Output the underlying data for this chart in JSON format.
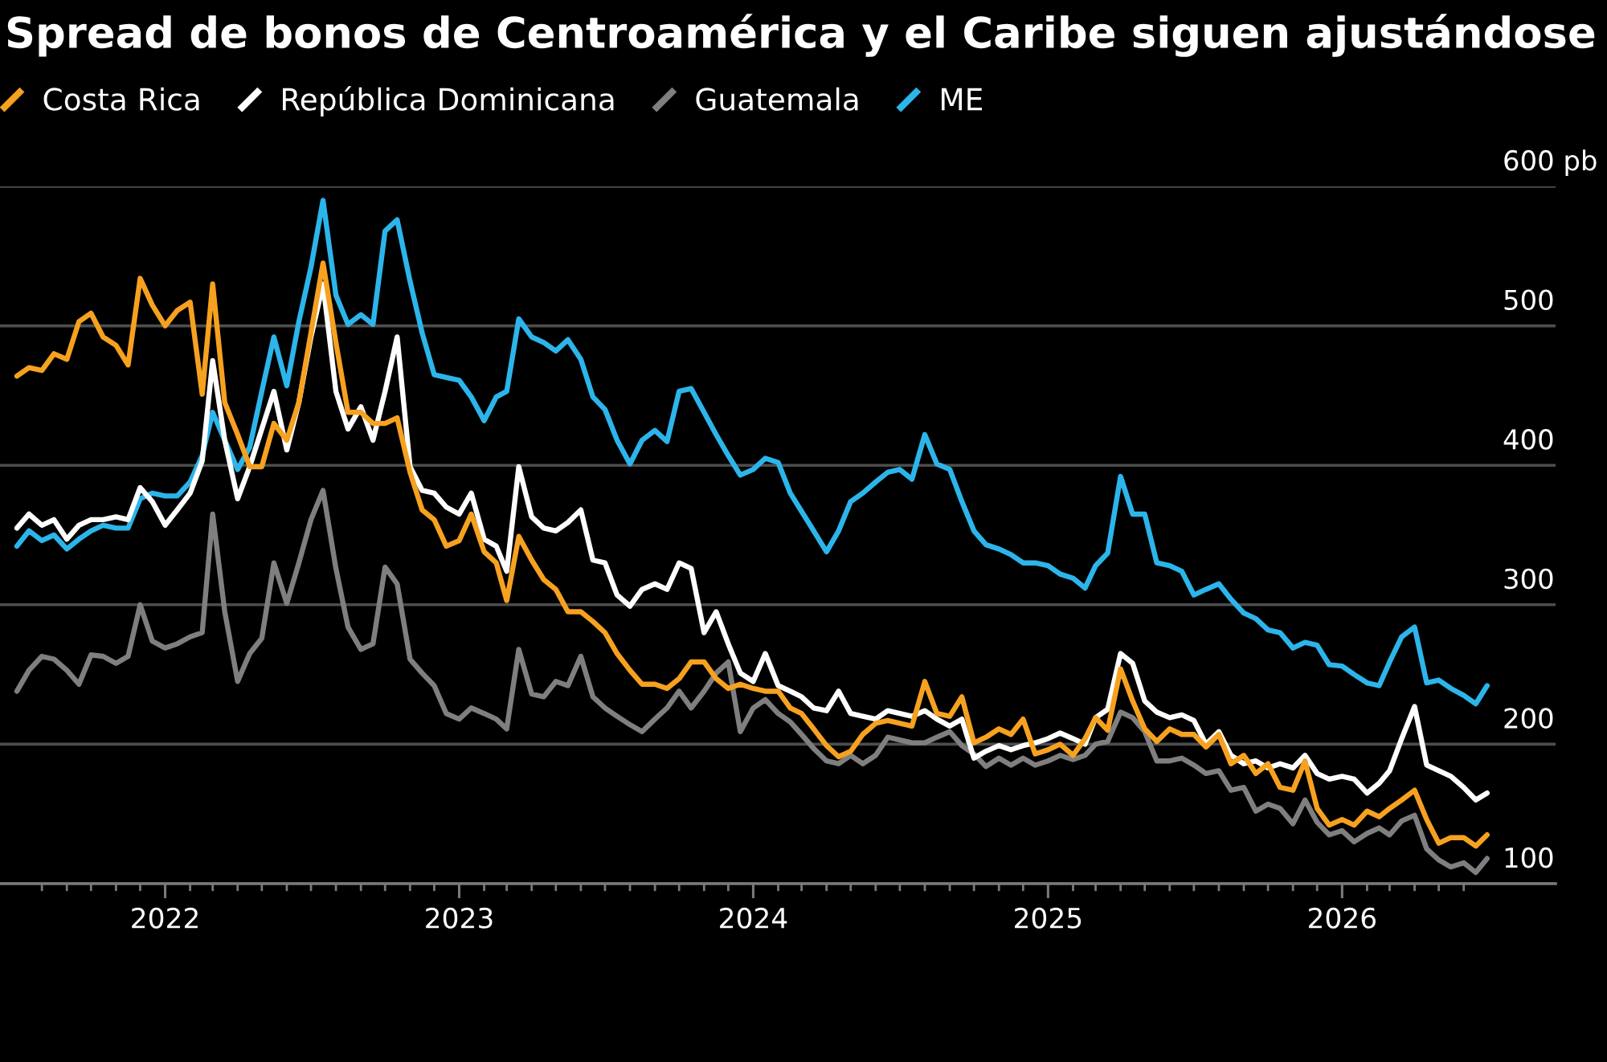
{
  "chart_data": {
    "type": "line",
    "title": "Spread de bonos de Centroamérica y el Caribe siguen ajustándose",
    "x": [
      "2021-07-01",
      "2021-07-16",
      "2021-08-01",
      "2021-08-16",
      "2021-09-01",
      "2021-09-16",
      "2021-10-01",
      "2021-10-16",
      "2021-11-01",
      "2021-11-16",
      "2021-12-01",
      "2021-12-16",
      "2022-01-01",
      "2022-01-16",
      "2022-02-01",
      "2022-02-16",
      "2022-03-01",
      "2022-03-16",
      "2022-04-01",
      "2022-04-16",
      "2022-05-01",
      "2022-05-16",
      "2022-06-01",
      "2022-06-16",
      "2022-07-01",
      "2022-07-16",
      "2022-08-01",
      "2022-08-16",
      "2022-09-01",
      "2022-09-16",
      "2022-10-01",
      "2022-10-16",
      "2022-11-01",
      "2022-11-16",
      "2022-12-01",
      "2022-12-16",
      "2023-01-01",
      "2023-01-16",
      "2023-02-01",
      "2023-02-16",
      "2023-03-01",
      "2023-03-16",
      "2023-04-01",
      "2023-04-16",
      "2023-05-01",
      "2023-05-16",
      "2023-06-01",
      "2023-06-16",
      "2023-07-01",
      "2023-07-16",
      "2023-08-01",
      "2023-08-16",
      "2023-09-01",
      "2023-09-16",
      "2023-10-01",
      "2023-10-16",
      "2023-11-01",
      "2023-11-16",
      "2023-12-01",
      "2023-12-16",
      "2024-01-01",
      "2024-01-16",
      "2024-02-01",
      "2024-02-16",
      "2024-03-01",
      "2024-03-16",
      "2024-04-01",
      "2024-04-16",
      "2024-05-01",
      "2024-05-16",
      "2024-06-01",
      "2024-06-16",
      "2024-07-01",
      "2024-07-16",
      "2024-08-01",
      "2024-08-16",
      "2024-09-01",
      "2024-09-16",
      "2024-10-01",
      "2024-10-16",
      "2024-11-01",
      "2024-11-16",
      "2024-12-01",
      "2024-12-16",
      "2025-01-01",
      "2025-01-16",
      "2025-02-01",
      "2025-02-16",
      "2025-03-01",
      "2025-03-16",
      "2025-04-01",
      "2025-04-16",
      "2025-05-01",
      "2025-05-16",
      "2025-06-01",
      "2025-06-16",
      "2025-07-01",
      "2025-07-16",
      "2025-08-01",
      "2025-08-16",
      "2025-09-01",
      "2025-09-16",
      "2025-10-01",
      "2025-10-16",
      "2025-11-01",
      "2025-11-16",
      "2025-12-01",
      "2025-12-16",
      "2026-01-01",
      "2026-01-16",
      "2026-02-01",
      "2026-02-16",
      "2026-03-01",
      "2026-03-16",
      "2026-04-01",
      "2026-04-16",
      "2026-05-01",
      "2026-05-16",
      "2026-06-01",
      "2026-06-16",
      "2026-06-30"
    ],
    "series": [
      {
        "name": "Costa Rica",
        "color": "#f6a11f",
        "values": [
          464,
          470,
          468,
          480,
          476,
          503,
          509,
          492,
          486,
          472,
          534,
          515,
          500,
          511,
          517,
          451,
          530,
          445,
          422,
          399,
          399,
          430,
          418,
          445,
          495,
          545,
          488,
          438,
          438,
          430,
          430,
          434,
          395,
          368,
          361,
          342,
          346,
          365,
          338,
          330,
          303,
          349,
          332,
          318,
          311,
          295,
          295,
          288,
          280,
          265,
          253,
          243,
          243,
          240,
          247,
          259,
          259,
          247,
          240,
          243,
          240,
          238,
          238,
          226,
          222,
          211,
          199,
          191,
          195,
          207,
          215,
          217,
          215,
          213,
          245,
          222,
          220,
          234,
          201,
          205,
          211,
          207,
          218,
          193,
          196,
          200,
          192,
          204,
          219,
          210,
          254,
          231,
          211,
          202,
          211,
          207,
          207,
          198,
          207,
          186,
          192,
          179,
          186,
          169,
          167,
          188,
          154,
          142,
          146,
          142,
          152,
          148,
          154,
          160,
          167,
          146,
          129,
          133,
          133,
          127,
          135
        ]
      },
      {
        "name": "República Dominicana",
        "color": "#ffffff",
        "values": [
          355,
          365,
          357,
          361,
          347,
          357,
          361,
          361,
          363,
          361,
          384,
          374,
          357,
          368,
          380,
          403,
          475,
          418,
          376,
          399,
          426,
          453,
          411,
          445,
          492,
          530,
          453,
          426,
          442,
          418,
          453,
          492,
          399,
          382,
          380,
          370,
          365,
          380,
          347,
          342,
          324,
          399,
          363,
          355,
          353,
          359,
          368,
          332,
          330,
          307,
          299,
          311,
          315,
          311,
          330,
          326,
          280,
          295,
          272,
          251,
          245,
          265,
          242,
          238,
          234,
          226,
          224,
          238,
          222,
          220,
          218,
          224,
          222,
          220,
          224,
          218,
          213,
          218,
          190,
          195,
          199,
          196,
          199,
          201,
          204,
          208,
          204,
          200,
          219,
          225,
          265,
          258,
          231,
          223,
          219,
          221,
          217,
          200,
          209,
          192,
          186,
          188,
          183,
          186,
          183,
          192,
          179,
          175,
          177,
          175,
          165,
          172,
          181,
          204,
          227,
          185,
          181,
          177,
          169,
          160,
          165
        ]
      },
      {
        "name": "Guatemala",
        "color": "#7f7f7f",
        "values": [
          238,
          253,
          263,
          261,
          253,
          243,
          264,
          263,
          258,
          263,
          300,
          274,
          269,
          272,
          277,
          280,
          365,
          295,
          245,
          265,
          276,
          330,
          301,
          330,
          361,
          382,
          326,
          284,
          268,
          272,
          327,
          315,
          261,
          251,
          242,
          222,
          218,
          226,
          222,
          218,
          211,
          268,
          236,
          234,
          245,
          242,
          263,
          234,
          226,
          220,
          214,
          209,
          218,
          226,
          238,
          226,
          238,
          251,
          259,
          209,
          226,
          232,
          222,
          216,
          207,
          197,
          188,
          186,
          192,
          186,
          192,
          205,
          203,
          201,
          201,
          205,
          209,
          199,
          193,
          184,
          190,
          185,
          190,
          185,
          188,
          192,
          189,
          192,
          200,
          202,
          223,
          219,
          209,
          188,
          188,
          190,
          185,
          179,
          181,
          167,
          169,
          152,
          157,
          154,
          143,
          160,
          144,
          135,
          138,
          130,
          136,
          140,
          135,
          145,
          149,
          125,
          117,
          112,
          115,
          108,
          118
        ]
      },
      {
        "name": "ME",
        "color": "#2cb5ea",
        "values": [
          342,
          353,
          346,
          350,
          340,
          347,
          353,
          357,
          355,
          355,
          376,
          380,
          378,
          378,
          388,
          407,
          438,
          418,
          397,
          413,
          453,
          492,
          457,
          503,
          542,
          590,
          522,
          501,
          508,
          501,
          568,
          576,
          532,
          495,
          465,
          463,
          461,
          449,
          432,
          449,
          453,
          505,
          492,
          488,
          482,
          490,
          476,
          449,
          440,
          418,
          401,
          418,
          425,
          417,
          453,
          455,
          438,
          422,
          407,
          393,
          397,
          405,
          402,
          380,
          367,
          353,
          338,
          353,
          374,
          380,
          388,
          395,
          397,
          390,
          422,
          401,
          397,
          374,
          353,
          343,
          340,
          336,
          330,
          330,
          328,
          322,
          319,
          312,
          328,
          337,
          392,
          365,
          365,
          330,
          328,
          324,
          307,
          311,
          315,
          304,
          294,
          290,
          282,
          280,
          269,
          273,
          271,
          257,
          256,
          250,
          244,
          242,
          259,
          277,
          284,
          244,
          246,
          240,
          235,
          229,
          242
        ]
      }
    ],
    "xlim": [
      "2021-06-10",
      "2026-09-23"
    ],
    "xticks": [
      {
        "value": "2021-08-01",
        "label": null
      },
      {
        "value": "2021-09-01",
        "label": null
      },
      {
        "value": "2021-10-01",
        "label": null
      },
      {
        "value": "2021-11-01",
        "label": null
      },
      {
        "value": "2021-12-01",
        "label": null
      },
      {
        "value": "2022-01-01",
        "label": "2022"
      },
      {
        "value": "2022-02-01",
        "label": null
      },
      {
        "value": "2022-03-01",
        "label": null
      },
      {
        "value": "2022-04-01",
        "label": null
      },
      {
        "value": "2022-05-01",
        "label": null
      },
      {
        "value": "2022-06-01",
        "label": null
      },
      {
        "value": "2022-07-01",
        "label": null
      },
      {
        "value": "2022-08-01",
        "label": null
      },
      {
        "value": "2022-09-01",
        "label": null
      },
      {
        "value": "2022-10-01",
        "label": null
      },
      {
        "value": "2022-11-01",
        "label": null
      },
      {
        "value": "2022-12-01",
        "label": null
      },
      {
        "value": "2023-01-01",
        "label": "2023"
      },
      {
        "value": "2023-02-01",
        "label": null
      },
      {
        "value": "2023-03-01",
        "label": null
      },
      {
        "value": "2023-04-01",
        "label": null
      },
      {
        "value": "2023-05-01",
        "label": null
      },
      {
        "value": "2023-06-01",
        "label": null
      },
      {
        "value": "2023-07-01",
        "label": null
      },
      {
        "value": "2023-08-01",
        "label": null
      },
      {
        "value": "2023-09-01",
        "label": null
      },
      {
        "value": "2023-10-01",
        "label": null
      },
      {
        "value": "2023-11-01",
        "label": null
      },
      {
        "value": "2023-12-01",
        "label": null
      },
      {
        "value": "2024-01-01",
        "label": "2024"
      },
      {
        "value": "2024-02-01",
        "label": null
      },
      {
        "value": "2024-03-01",
        "label": null
      },
      {
        "value": "2024-04-01",
        "label": null
      },
      {
        "value": "2024-05-01",
        "label": null
      },
      {
        "value": "2024-06-01",
        "label": null
      },
      {
        "value": "2024-07-01",
        "label": null
      },
      {
        "value": "2024-08-01",
        "label": null
      },
      {
        "value": "2024-09-01",
        "label": null
      },
      {
        "value": "2024-10-01",
        "label": null
      },
      {
        "value": "2024-11-01",
        "label": null
      },
      {
        "value": "2024-12-01",
        "label": null
      },
      {
        "value": "2025-01-01",
        "label": "2025"
      },
      {
        "value": "2025-02-01",
        "label": null
      },
      {
        "value": "2025-03-01",
        "label": null
      },
      {
        "value": "2025-04-01",
        "label": null
      },
      {
        "value": "2025-05-01",
        "label": null
      },
      {
        "value": "2025-06-01",
        "label": null
      },
      {
        "value": "2025-07-01",
        "label": null
      },
      {
        "value": "2025-08-01",
        "label": null
      },
      {
        "value": "2025-09-01",
        "label": null
      },
      {
        "value": "2025-10-01",
        "label": null
      },
      {
        "value": "2025-11-01",
        "label": null
      },
      {
        "value": "2025-12-01",
        "label": null
      },
      {
        "value": "2026-01-01",
        "label": "2026"
      },
      {
        "value": "2026-02-01",
        "label": null
      },
      {
        "value": "2026-03-01",
        "label": null
      },
      {
        "value": "2026-04-01",
        "label": null
      },
      {
        "value": "2026-05-01",
        "label": null
      },
      {
        "value": "2026-06-01",
        "label": null
      }
    ],
    "ylim": [
      100,
      600
    ],
    "yticks": [
      100,
      200,
      300,
      400,
      500,
      {
        "value": 600,
        "label": "600 pb"
      }
    ],
    "grid": "y",
    "legend": "top left"
  }
}
